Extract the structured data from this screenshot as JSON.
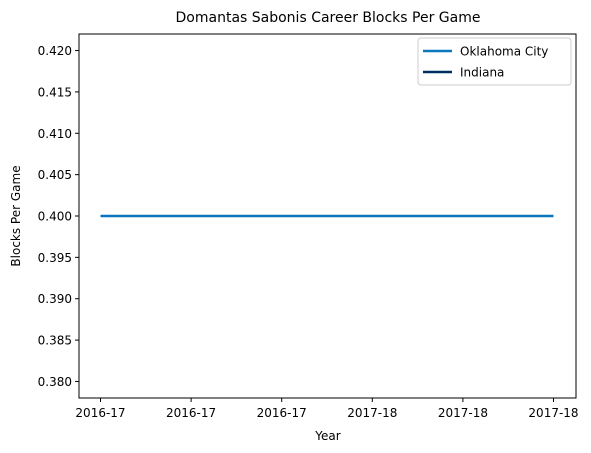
{
  "chart_data": {
    "type": "line",
    "title": "Domantas Sabonis Career Blocks Per Game",
    "xlabel": "Year",
    "ylabel": "Blocks Per Game",
    "x_tick_labels": [
      "2016-17",
      "2016-17",
      "2016-17",
      "2017-18",
      "2017-18",
      "2017-18"
    ],
    "y_ticks": [
      0.38,
      0.385,
      0.39,
      0.395,
      0.4,
      0.405,
      0.41,
      0.415,
      0.42
    ],
    "y_tick_labels": [
      "0.380",
      "0.385",
      "0.390",
      "0.395",
      "0.400",
      "0.405",
      "0.410",
      "0.415",
      "0.420"
    ],
    "ylim": [
      0.378,
      0.422
    ],
    "grid": false,
    "legend_position": "top-right",
    "series": [
      {
        "name": "Oklahoma City",
        "color": "#0b77bd",
        "x": [
          "2016-17",
          "2016-17",
          "2016-17",
          "2017-18",
          "2017-18",
          "2017-18"
        ],
        "y": [
          0.4,
          0.4,
          0.4,
          0.4,
          0.4,
          0.4
        ]
      },
      {
        "name": "Indiana",
        "color": "#002d62",
        "x": [],
        "y": []
      }
    ]
  }
}
